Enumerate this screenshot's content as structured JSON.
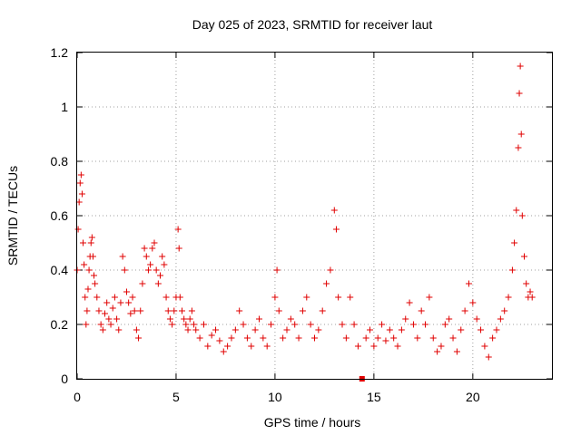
{
  "chart_data": {
    "type": "scatter",
    "title": "Day 025 of 2023, SRMTID for receiver laut",
    "xlabel": "GPS time / hours",
    "ylabel": "SRMTID / TECUs",
    "xlim": [
      0,
      24
    ],
    "ylim": [
      0,
      1.2
    ],
    "x_ticks": [
      0,
      5,
      10,
      15,
      20
    ],
    "x_tick_labels": [
      "0",
      "5",
      "10",
      "15",
      "20"
    ],
    "y_ticks": [
      0,
      0.2,
      0.4,
      0.6,
      0.8,
      1.0,
      1.2
    ],
    "y_tick_labels": [
      "0",
      "0.2",
      "0.4",
      "0.6",
      "0.8",
      "1",
      "1.2"
    ],
    "grid": true,
    "marker": "+",
    "color": "#e00000",
    "outlier_marker": {
      "x": 14.4,
      "y": 0.0,
      "shape": "square"
    },
    "series": [
      {
        "name": "SRMTID",
        "points": [
          [
            0.0,
            0.4
          ],
          [
            0.05,
            0.55
          ],
          [
            0.1,
            0.65
          ],
          [
            0.15,
            0.72
          ],
          [
            0.2,
            0.75
          ],
          [
            0.25,
            0.68
          ],
          [
            0.3,
            0.5
          ],
          [
            0.35,
            0.42
          ],
          [
            0.4,
            0.3
          ],
          [
            0.45,
            0.2
          ],
          [
            0.5,
            0.25
          ],
          [
            0.55,
            0.33
          ],
          [
            0.6,
            0.4
          ],
          [
            0.65,
            0.45
          ],
          [
            0.7,
            0.5
          ],
          [
            0.75,
            0.52
          ],
          [
            0.8,
            0.45
          ],
          [
            0.85,
            0.38
          ],
          [
            0.9,
            0.35
          ],
          [
            1.0,
            0.3
          ],
          [
            1.1,
            0.25
          ],
          [
            1.2,
            0.2
          ],
          [
            1.3,
            0.18
          ],
          [
            1.4,
            0.24
          ],
          [
            1.5,
            0.28
          ],
          [
            1.6,
            0.22
          ],
          [
            1.7,
            0.2
          ],
          [
            1.8,
            0.26
          ],
          [
            1.9,
            0.3
          ],
          [
            2.0,
            0.22
          ],
          [
            2.1,
            0.18
          ],
          [
            2.2,
            0.28
          ],
          [
            2.3,
            0.45
          ],
          [
            2.4,
            0.4
          ],
          [
            2.5,
            0.32
          ],
          [
            2.6,
            0.28
          ],
          [
            2.7,
            0.24
          ],
          [
            2.8,
            0.3
          ],
          [
            2.9,
            0.25
          ],
          [
            3.0,
            0.18
          ],
          [
            3.1,
            0.15
          ],
          [
            3.2,
            0.25
          ],
          [
            3.3,
            0.35
          ],
          [
            3.4,
            0.48
          ],
          [
            3.5,
            0.45
          ],
          [
            3.6,
            0.4
          ],
          [
            3.7,
            0.42
          ],
          [
            3.8,
            0.48
          ],
          [
            3.9,
            0.5
          ],
          [
            4.0,
            0.4
          ],
          [
            4.1,
            0.35
          ],
          [
            4.2,
            0.38
          ],
          [
            4.3,
            0.45
          ],
          [
            4.4,
            0.42
          ],
          [
            4.5,
            0.3
          ],
          [
            4.6,
            0.25
          ],
          [
            4.7,
            0.22
          ],
          [
            4.8,
            0.2
          ],
          [
            4.9,
            0.25
          ],
          [
            5.0,
            0.3
          ],
          [
            5.1,
            0.55
          ],
          [
            5.15,
            0.48
          ],
          [
            5.2,
            0.3
          ],
          [
            5.3,
            0.25
          ],
          [
            5.4,
            0.22
          ],
          [
            5.5,
            0.2
          ],
          [
            5.6,
            0.18
          ],
          [
            5.7,
            0.22
          ],
          [
            5.8,
            0.25
          ],
          [
            5.9,
            0.2
          ],
          [
            6.0,
            0.18
          ],
          [
            6.2,
            0.15
          ],
          [
            6.4,
            0.2
          ],
          [
            6.6,
            0.12
          ],
          [
            6.8,
            0.16
          ],
          [
            7.0,
            0.18
          ],
          [
            7.2,
            0.14
          ],
          [
            7.4,
            0.1
          ],
          [
            7.6,
            0.12
          ],
          [
            7.8,
            0.15
          ],
          [
            8.0,
            0.18
          ],
          [
            8.2,
            0.25
          ],
          [
            8.4,
            0.2
          ],
          [
            8.6,
            0.15
          ],
          [
            8.8,
            0.12
          ],
          [
            9.0,
            0.18
          ],
          [
            9.2,
            0.22
          ],
          [
            9.4,
            0.15
          ],
          [
            9.6,
            0.12
          ],
          [
            9.8,
            0.2
          ],
          [
            10.0,
            0.3
          ],
          [
            10.1,
            0.4
          ],
          [
            10.2,
            0.25
          ],
          [
            10.4,
            0.15
          ],
          [
            10.6,
            0.18
          ],
          [
            10.8,
            0.22
          ],
          [
            11.0,
            0.2
          ],
          [
            11.2,
            0.15
          ],
          [
            11.4,
            0.25
          ],
          [
            11.6,
            0.3
          ],
          [
            11.8,
            0.2
          ],
          [
            12.0,
            0.15
          ],
          [
            12.2,
            0.18
          ],
          [
            12.4,
            0.25
          ],
          [
            12.6,
            0.35
          ],
          [
            12.8,
            0.4
          ],
          [
            13.0,
            0.62
          ],
          [
            13.1,
            0.55
          ],
          [
            13.2,
            0.3
          ],
          [
            13.4,
            0.2
          ],
          [
            13.6,
            0.15
          ],
          [
            13.8,
            0.3
          ],
          [
            14.0,
            0.2
          ],
          [
            14.2,
            0.12
          ],
          [
            14.6,
            0.15
          ],
          [
            14.8,
            0.18
          ],
          [
            15.0,
            0.12
          ],
          [
            15.2,
            0.15
          ],
          [
            15.4,
            0.2
          ],
          [
            15.6,
            0.14
          ],
          [
            15.8,
            0.18
          ],
          [
            16.0,
            0.15
          ],
          [
            16.2,
            0.12
          ],
          [
            16.4,
            0.18
          ],
          [
            16.6,
            0.22
          ],
          [
            16.8,
            0.28
          ],
          [
            17.0,
            0.2
          ],
          [
            17.2,
            0.15
          ],
          [
            17.4,
            0.25
          ],
          [
            17.6,
            0.2
          ],
          [
            17.8,
            0.3
          ],
          [
            18.0,
            0.15
          ],
          [
            18.2,
            0.1
          ],
          [
            18.4,
            0.12
          ],
          [
            18.6,
            0.2
          ],
          [
            18.8,
            0.22
          ],
          [
            19.0,
            0.15
          ],
          [
            19.2,
            0.1
          ],
          [
            19.4,
            0.18
          ],
          [
            19.6,
            0.25
          ],
          [
            19.8,
            0.35
          ],
          [
            20.0,
            0.28
          ],
          [
            20.2,
            0.22
          ],
          [
            20.4,
            0.18
          ],
          [
            20.6,
            0.12
          ],
          [
            20.8,
            0.08
          ],
          [
            21.0,
            0.15
          ],
          [
            21.2,
            0.18
          ],
          [
            21.4,
            0.22
          ],
          [
            21.6,
            0.25
          ],
          [
            21.8,
            0.3
          ],
          [
            22.0,
            0.4
          ],
          [
            22.1,
            0.5
          ],
          [
            22.2,
            0.62
          ],
          [
            22.3,
            0.85
          ],
          [
            22.35,
            1.05
          ],
          [
            22.4,
            1.15
          ],
          [
            22.45,
            0.9
          ],
          [
            22.5,
            0.6
          ],
          [
            22.6,
            0.45
          ],
          [
            22.7,
            0.35
          ],
          [
            22.8,
            0.3
          ],
          [
            22.9,
            0.32
          ],
          [
            23.0,
            0.3
          ]
        ]
      }
    ]
  }
}
